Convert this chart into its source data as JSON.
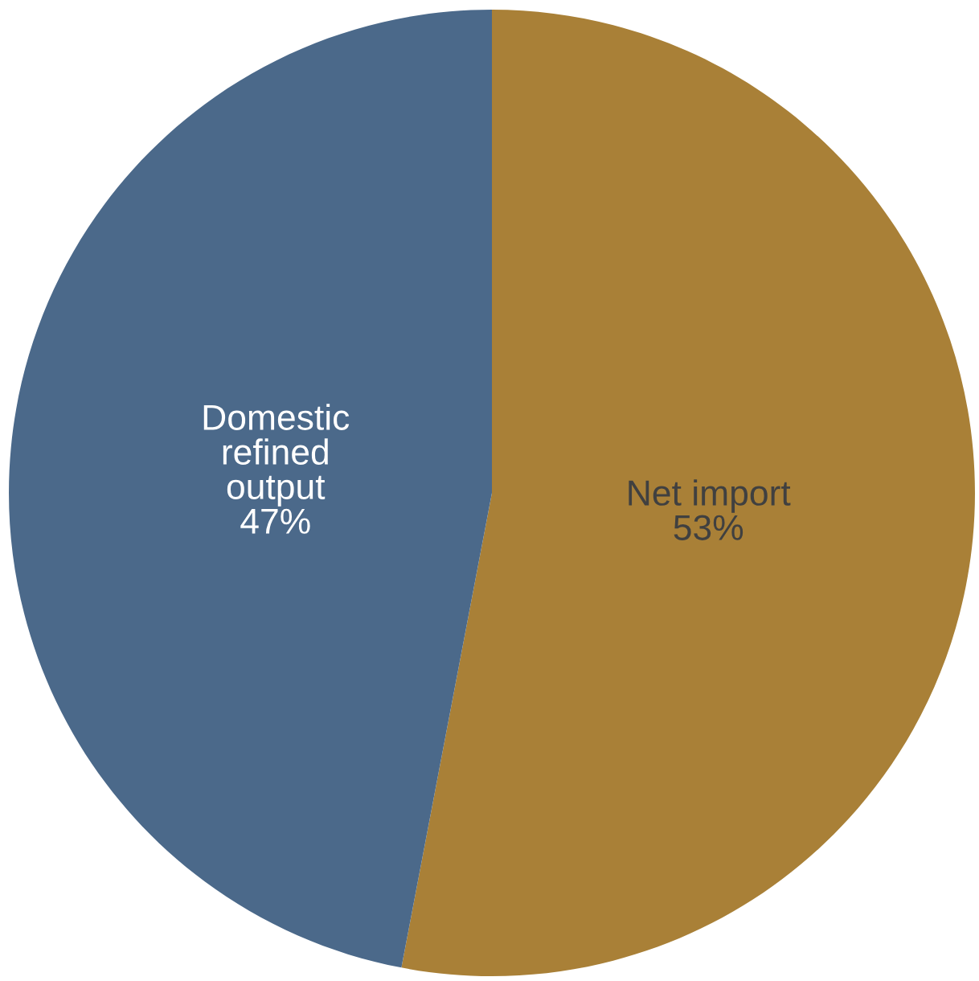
{
  "chart_data": {
    "type": "pie",
    "categories": [
      "Net import",
      "Domestic refined output"
    ],
    "values": [
      53,
      47
    ],
    "colors": [
      "#a98037",
      "#4b698a"
    ],
    "value_labels": [
      "53%",
      "47%"
    ]
  }
}
